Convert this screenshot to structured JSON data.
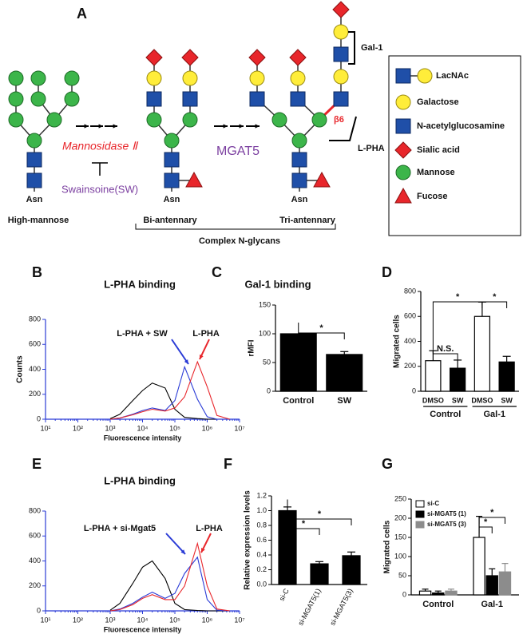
{
  "diagram": {
    "label": "A",
    "structures": [
      {
        "name": "High-mannose",
        "anchor": "Asn"
      },
      {
        "name": "Bi-antennary",
        "anchor": "Asn"
      },
      {
        "name": "Tri-antennary",
        "anchor": "Asn"
      }
    ],
    "group": "Complex N-glycans",
    "enzyme1": "Mannosidase Ⅱ",
    "inhibitor": "Swainsoine(SW)",
    "enzyme2": "MGAT5",
    "gal1": "Gal-1",
    "beta": "β6",
    "lpha": "L-PHA",
    "legend": [
      "LacNAc",
      "Galactose",
      "N-acetylglucosamine",
      "Sialic acid",
      "Mannose",
      "Fucose"
    ]
  },
  "chart_data": [
    {
      "type": "line",
      "label": "B",
      "title": "L-PHA binding",
      "xlabel": "Fluorescence intensity",
      "ylabel": "Counts",
      "log_x": true,
      "axis_color": "#2a3bd6",
      "x": [
        1000,
        2000,
        5000,
        10000,
        20000,
        50000,
        100000,
        200000,
        500000,
        1000000,
        2000000,
        5000000
      ],
      "xlim": [
        10,
        10000000
      ],
      "xticks": [
        {
          "value": 10,
          "label": "10¹"
        },
        {
          "value": 100,
          "label": "10²"
        },
        {
          "value": 1000,
          "label": "10³"
        },
        {
          "value": 10000,
          "label": "10⁴"
        },
        {
          "value": 100000,
          "label": "10⁵"
        },
        {
          "value": 1000000,
          "label": "10⁶"
        },
        {
          "value": 10000000,
          "label": "10⁷"
        }
      ],
      "ylim": [
        0,
        800
      ],
      "yticks": [
        0,
        200,
        400,
        600,
        800
      ],
      "series": [
        {
          "color": "#000000",
          "values": [
            5,
            40,
            150,
            230,
            290,
            250,
            80,
            15,
            5,
            0,
            0,
            0
          ]
        },
        {
          "color": "#2a3bd6",
          "values": [
            0,
            10,
            40,
            70,
            90,
            70,
            150,
            420,
            160,
            20,
            0,
            0
          ]
        },
        {
          "color": "#e8262b",
          "values": [
            0,
            10,
            35,
            60,
            80,
            65,
            90,
            180,
            460,
            260,
            30,
            0
          ]
        }
      ],
      "annotations": [
        "L-PHA + SW",
        "L-PHA"
      ]
    },
    {
      "type": "bar",
      "label": "C",
      "title": "Gal-1 binding",
      "ylabel": "rMFI",
      "categories": [
        "Control",
        "SW"
      ],
      "ylim": [
        0,
        150
      ],
      "yticks": [
        0,
        50,
        100,
        150
      ],
      "series": [
        {
          "colors": [
            "#000000",
            "#000000"
          ],
          "values": [
            100,
            64
          ],
          "errors": [
            null,
            5
          ]
        }
      ],
      "annotations": [
        "*"
      ]
    },
    {
      "type": "bar",
      "label": "D",
      "ylabel": "Migrated cells",
      "categories": [
        "DMSO",
        "SW",
        "DMSO",
        "SW"
      ],
      "group_labels": [
        "Control",
        "Gal-1"
      ],
      "ylim": [
        0,
        800
      ],
      "yticks": [
        0,
        200,
        400,
        600,
        800
      ],
      "series": [
        {
          "colors": [
            "#ffffff",
            "#000000",
            "#ffffff",
            "#000000"
          ],
          "values": [
            245,
            185,
            600,
            235
          ],
          "errors": [
            80,
            65,
            115,
            45
          ]
        }
      ],
      "annotations": [
        "N.S.",
        "*",
        "*"
      ]
    },
    {
      "type": "line",
      "label": "E",
      "title": "L-PHA binding",
      "xlabel": "Fluorescence intensity",
      "log_x": true,
      "axis_color": "#2a3bd6",
      "x": [
        1000,
        2000,
        5000,
        10000,
        20000,
        50000,
        100000,
        200000,
        500000,
        1000000,
        2000000,
        5000000
      ],
      "xlim": [
        10,
        10000000
      ],
      "xticks": [
        {
          "value": 10,
          "label": "10¹"
        },
        {
          "value": 100,
          "label": "10²"
        },
        {
          "value": 1000,
          "label": "10³"
        },
        {
          "value": 10000,
          "label": "10⁴"
        },
        {
          "value": 100000,
          "label": "10⁵"
        },
        {
          "value": 1000000,
          "label": "10⁶"
        },
        {
          "value": 10000000,
          "label": "10⁷"
        }
      ],
      "ylim": [
        0,
        800
      ],
      "yticks": [
        0,
        200,
        400,
        600,
        800
      ],
      "series": [
        {
          "color": "#000000",
          "values": [
            5,
            60,
            220,
            350,
            400,
            260,
            60,
            10,
            3,
            0,
            0,
            0
          ]
        },
        {
          "color": "#2a3bd6",
          "values": [
            0,
            15,
            60,
            110,
            150,
            100,
            140,
            300,
            430,
            90,
            5,
            0
          ]
        },
        {
          "color": "#e8262b",
          "values": [
            0,
            10,
            50,
            100,
            130,
            90,
            90,
            200,
            540,
            200,
            15,
            0
          ]
        }
      ],
      "annotations": [
        "L-PHA + si-Mgat5",
        "L-PHA"
      ]
    },
    {
      "type": "bar",
      "label": "F",
      "ylabel": "Relative expression levels",
      "categories": [
        "si-C",
        "si-MGAT5(1)",
        "si-MGAT5(3)"
      ],
      "ylim": [
        0,
        1.2
      ],
      "yticks": [
        {
          "value": 0,
          "label": "0.0"
        },
        {
          "value": 0.2,
          "label": "0.2"
        },
        {
          "value": 0.4,
          "label": "0.4"
        },
        {
          "value": 0.6,
          "label": "0.6"
        },
        {
          "value": 0.8,
          "label": "0.8"
        },
        {
          "value": 1,
          "label": "1.0"
        },
        {
          "value": 1.2,
          "label": "1.2"
        }
      ],
      "series": [
        {
          "colors": [
            "#000000",
            "#000000",
            "#000000"
          ],
          "values": [
            1.0,
            0.28,
            0.39
          ],
          "errors": [
            0.05,
            0.03,
            0.05
          ]
        }
      ],
      "annotations": [
        "*",
        "*"
      ]
    },
    {
      "type": "grouped_bar",
      "label": "G",
      "ylabel": "Migrated cells",
      "categories": [
        "Control",
        "Gal-1"
      ],
      "ylim": [
        0,
        250
      ],
      "yticks": [
        0,
        50,
        100,
        150,
        200,
        250
      ],
      "legend": "top-left",
      "series": [
        {
          "name": "si-C",
          "color": "#ffffff",
          "values": [
            10,
            150
          ],
          "errors": [
            5,
            55
          ]
        },
        {
          "name": "si-MGAT5 (1)",
          "color": "#000000",
          "values": [
            5,
            50
          ],
          "errors": [
            5,
            18
          ]
        },
        {
          "name": "si-MGAT5 (3)",
          "color": "#8c8c8c",
          "values": [
            10,
            60
          ],
          "errors": [
            5,
            22
          ]
        }
      ],
      "annotations": [
        "*",
        "*"
      ]
    }
  ]
}
